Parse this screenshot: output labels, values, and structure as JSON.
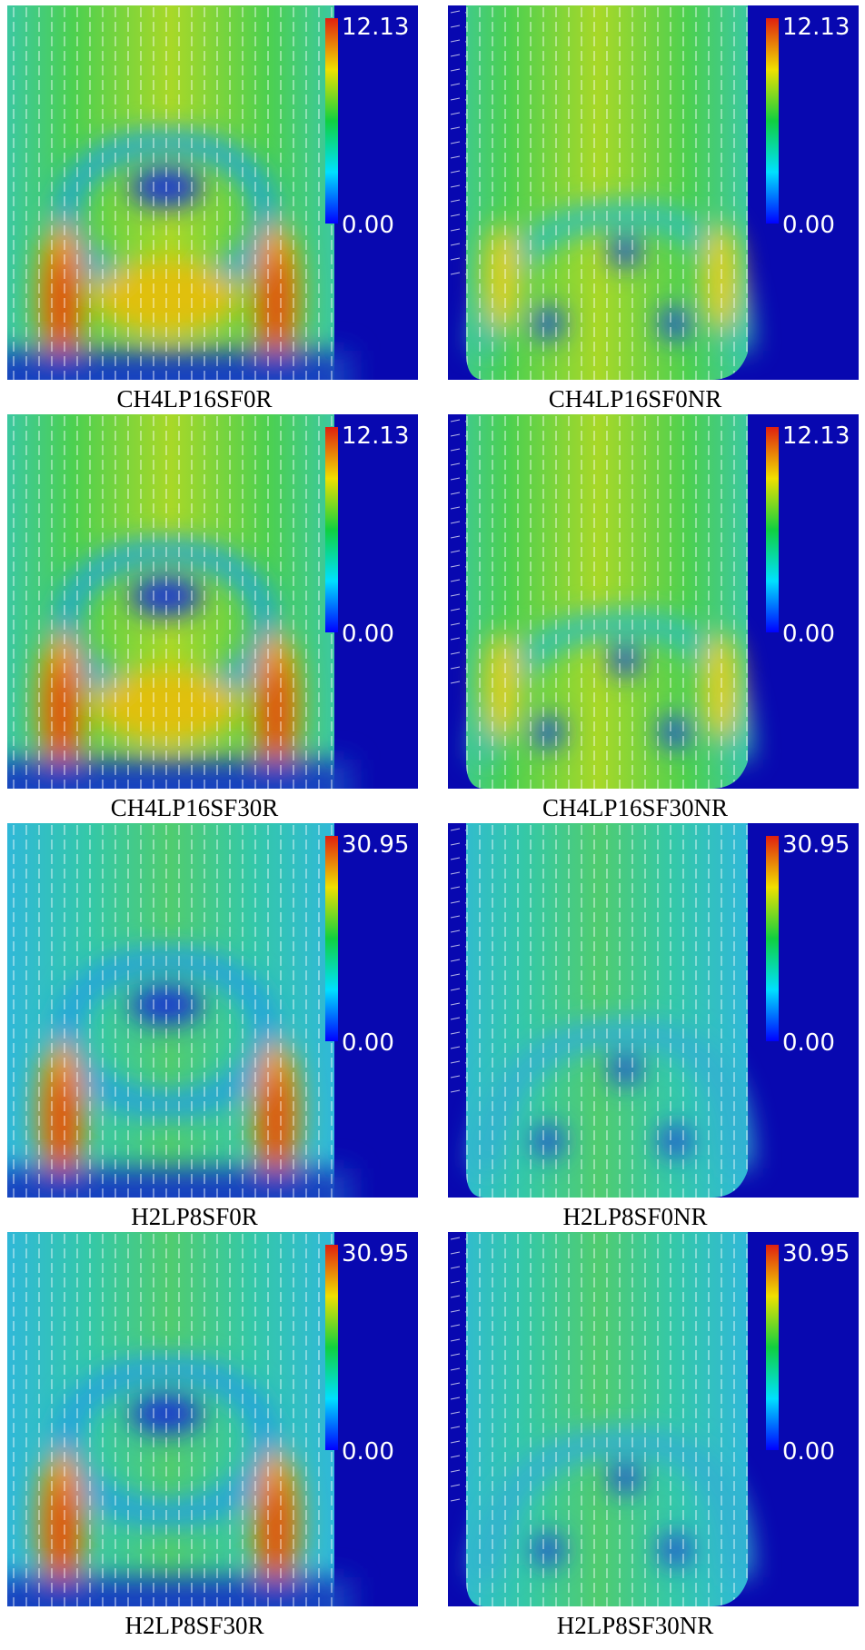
{
  "panels": [
    {
      "caption": "CH4LP16SF0R",
      "colorbar_max": "12.13",
      "colorbar_min": "0.00"
    },
    {
      "caption": "CH4LP16SF0NR",
      "colorbar_max": "12.13",
      "colorbar_min": "0.00"
    },
    {
      "caption": "CH4LP16SF30R",
      "colorbar_max": "12.13",
      "colorbar_min": "0.00"
    },
    {
      "caption": "CH4LP16SF30NR",
      "colorbar_max": "12.13",
      "colorbar_min": "0.00"
    },
    {
      "caption": "H2LP8SF0R",
      "colorbar_max": "30.95",
      "colorbar_min": "0.00"
    },
    {
      "caption": "H2LP8SF0NR",
      "colorbar_max": "30.95",
      "colorbar_min": "0.00"
    },
    {
      "caption": "H2LP8SF30R",
      "colorbar_max": "30.95",
      "colorbar_min": "0.00"
    },
    {
      "caption": "H2LP8SF30NR",
      "colorbar_max": "30.95",
      "colorbar_min": "0.00"
    }
  ]
}
